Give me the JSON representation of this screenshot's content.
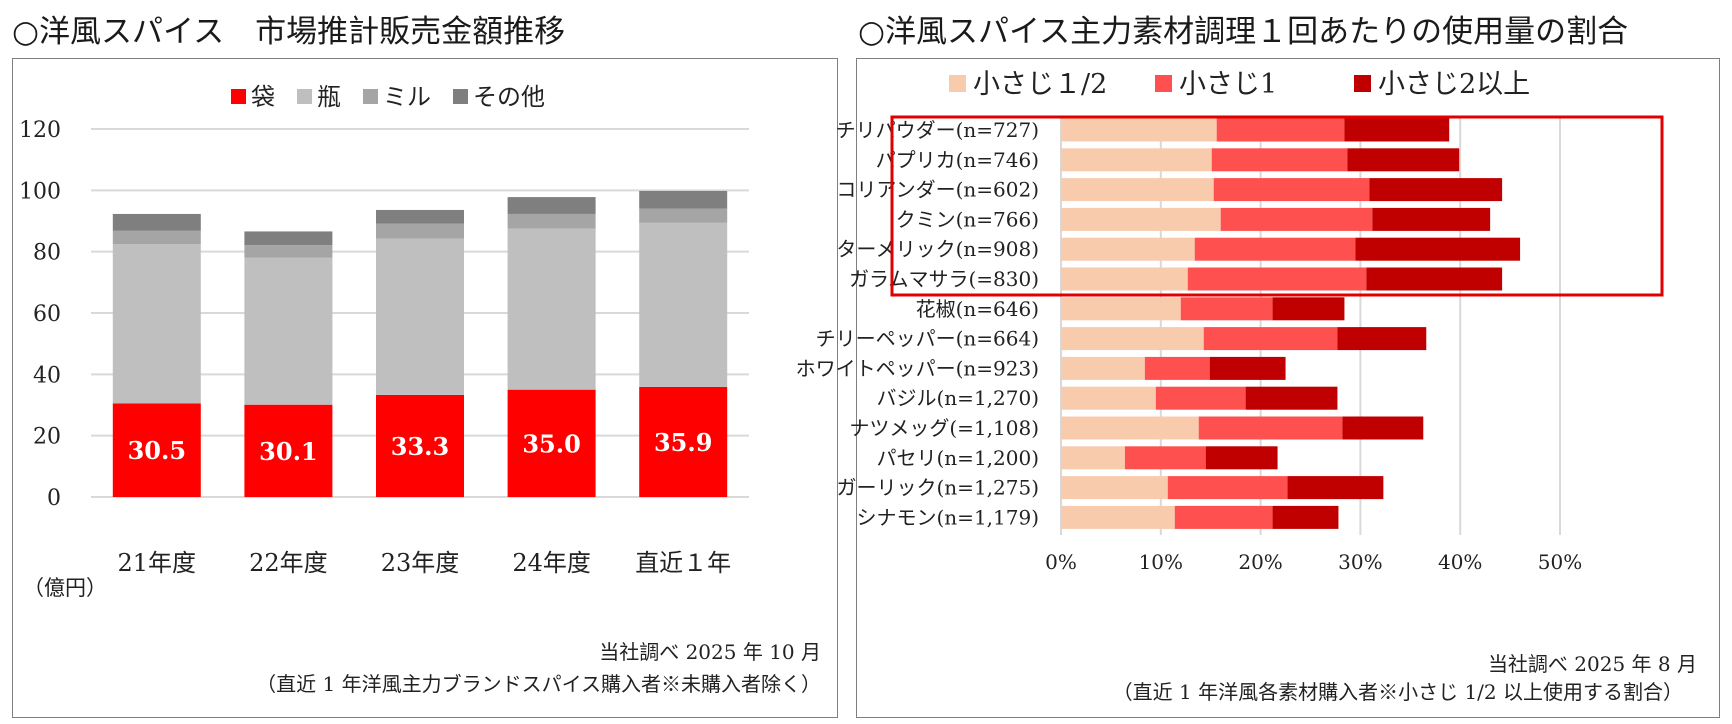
{
  "left": {
    "title": "○洋風スパイス　市場推計販売金額推移",
    "source_line1": "当社調べ 2025 年 10 月",
    "source_line2": "（直近 1 年洋風主力ブランドスパイス購入者※未購入者除く）"
  },
  "right": {
    "title": "○洋風スパイス主力素材調理１回あたりの使用量の割合",
    "source_line1": "当社調べ 2025 年 8 月",
    "source_line2": "（直近 1 年洋風各素材購入者※小さじ 1/2 以上使用する割合）"
  },
  "colors": {
    "bag": "#ff0000",
    "bottle": "#bfbfbf",
    "mill": "#a5a5a5",
    "other": "#7f7f7f",
    "half": "#f8cbad",
    "one": "#ff5050",
    "two_plus": "#c00000",
    "highlight": "#e00000"
  },
  "chart_data": [
    {
      "type": "bar",
      "stacked": true,
      "title": "洋風スパイス　市場推計販売金額推移",
      "categories": [
        "21年度",
        "22年度",
        "23年度",
        "24年度",
        "直近１年"
      ],
      "series": [
        {
          "name": "袋",
          "values": [
            30.5,
            30.1,
            33.3,
            35.0,
            35.9
          ]
        },
        {
          "name": "瓶",
          "values": [
            52.0,
            48.0,
            51.0,
            52.5,
            53.5
          ]
        },
        {
          "name": "ミル",
          "values": [
            4.3,
            4.0,
            4.8,
            4.8,
            4.6
          ]
        },
        {
          "name": "その他",
          "values": [
            5.5,
            4.5,
            4.5,
            5.5,
            5.8
          ]
        }
      ],
      "data_labels": [
        "30.5",
        "30.1",
        "33.3",
        "35.0",
        "35.9"
      ],
      "y_ticks": [
        "0",
        "20",
        "40",
        "60",
        "80",
        "100",
        "120"
      ],
      "ylim": [
        0,
        120
      ],
      "ylabel": "（億円）",
      "legend_position": "top",
      "grid": true
    },
    {
      "type": "bar",
      "orientation": "horizontal",
      "stacked": true,
      "title": "洋風スパイス主力素材調理１回あたりの使用量の割合",
      "categories": [
        "チリパウダー(n=727)",
        "パプリカ(n=746)",
        "コリアンダー(n=602)",
        "クミン(n=766)",
        "ターメリック(n=908)",
        "ガラムマサラ(=830)",
        "花椒(n=646)",
        "チリーペッパー(n=664)",
        "ホワイトペッパー(n=923)",
        "バジル(n=1,270)",
        "ナツメッグ(=1,108)",
        "パセリ(n=1,200)",
        "ガーリック(n=1,275)",
        "シナモン(n=1,179)"
      ],
      "series": [
        {
          "name": "小さじ１/2",
          "values": [
            15.6,
            15.1,
            15.3,
            16.0,
            13.4,
            12.7,
            12.0,
            14.3,
            8.4,
            9.5,
            13.8,
            6.4,
            10.7,
            11.4
          ]
        },
        {
          "name": "小さじ1",
          "values": [
            12.8,
            13.6,
            15.6,
            15.2,
            16.1,
            17.9,
            9.2,
            13.4,
            6.5,
            9.0,
            14.4,
            8.1,
            12.0,
            9.8
          ]
        },
        {
          "name": "小さじ2以上",
          "values": [
            10.5,
            11.2,
            13.3,
            11.8,
            16.5,
            13.6,
            7.2,
            8.9,
            7.6,
            9.2,
            8.1,
            7.2,
            9.6,
            6.6
          ]
        }
      ],
      "x_ticks": [
        "0%",
        "10%",
        "20%",
        "30%",
        "40%",
        "50%"
      ],
      "xlim": [
        0,
        50
      ],
      "unit": "%",
      "highlight_rows": [
        0,
        1,
        2,
        3,
        4
      ],
      "legend_position": "top",
      "grid": true
    }
  ]
}
